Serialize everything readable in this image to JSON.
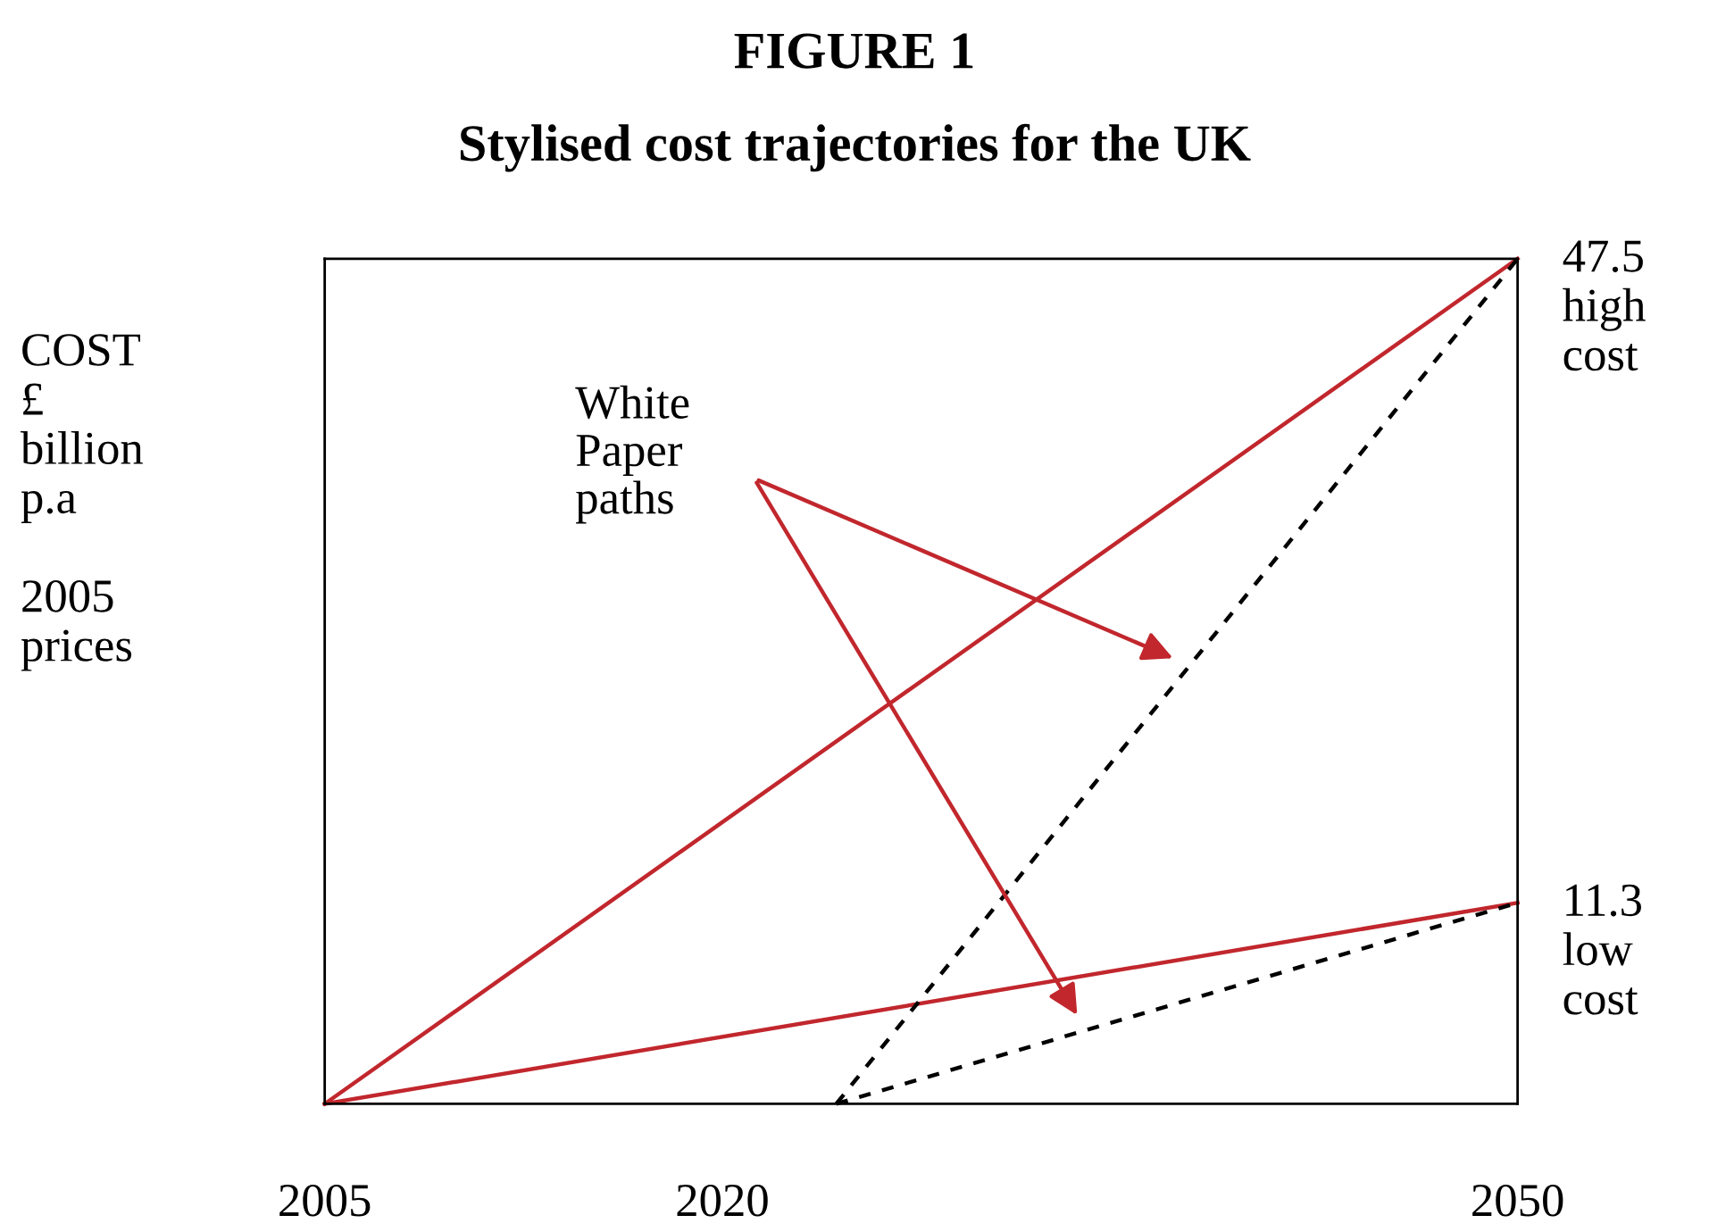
{
  "chart_data": {
    "type": "line",
    "title": "FIGURE 1",
    "subtitle": "Stylised cost trajectories for the UK",
    "ylabel": "COST\n£\nbillion\np.a\n\n2005\nprices",
    "xlim": [
      2005,
      2050
    ],
    "ylim": [
      0,
      47.5
    ],
    "xticks": [
      2005,
      2020,
      2050
    ],
    "tick_labels": "x",
    "grid": false,
    "series": [
      {
        "name": "high cost",
        "color": "#c1272d",
        "line_style": "solid",
        "x": [
          2005,
          2050
        ],
        "values": [
          0,
          47.5
        ],
        "value_labels": [
          null,
          "47.5"
        ]
      },
      {
        "name": "low cost",
        "color": "#c1272d",
        "line_style": "solid",
        "x": [
          2005,
          2050
        ],
        "values": [
          0,
          11.3
        ],
        "value_labels": [
          null,
          "11.3"
        ]
      },
      {
        "color": "#000000",
        "line_style": "dashed",
        "x": [
          2024.3,
          2050
        ],
        "values": [
          0,
          47.5
        ]
      },
      {
        "color": "#000000",
        "line_style": "dashed",
        "x": [
          2024.3,
          2050
        ],
        "values": [
          0,
          11.3
        ]
      }
    ],
    "annotations": [
      "White\nPaper\npaths"
    ]
  }
}
